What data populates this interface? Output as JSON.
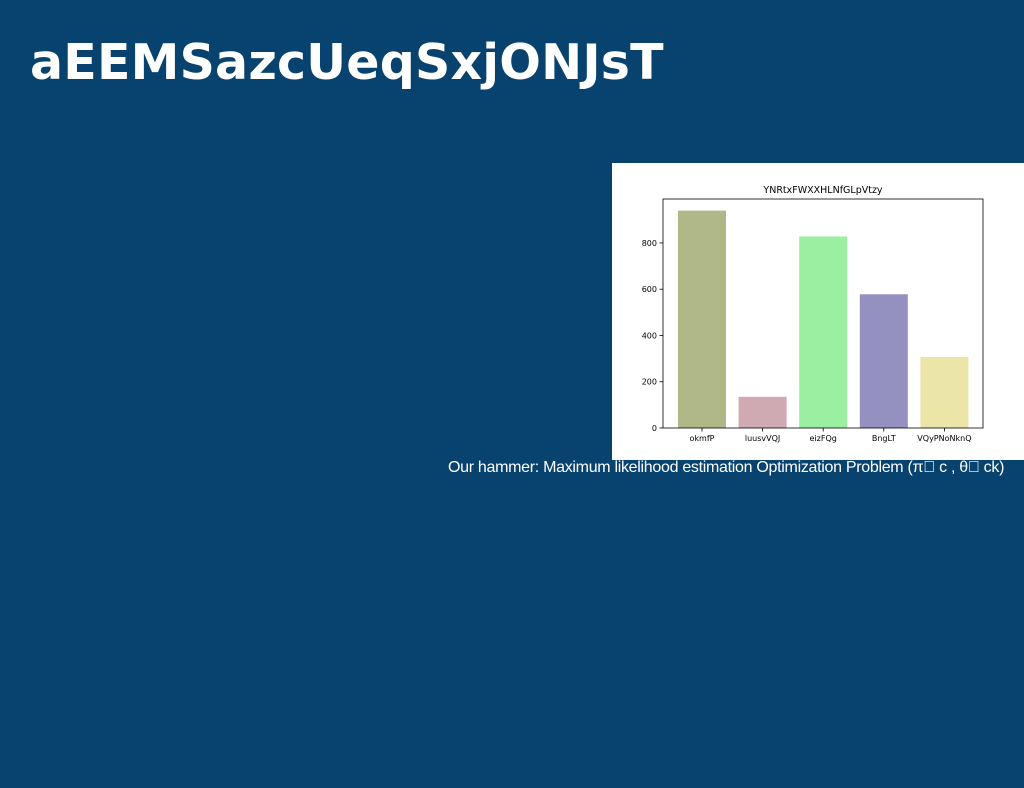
{
  "slide": {
    "title": "aEEMSazcUeqSxjONJsT",
    "caption": "Our hammer: Maximum likelihood estimation Optimization Problem (π\u0000 c , θ\u0000 ck)",
    "background": "#08426e"
  },
  "chart_data": {
    "type": "bar",
    "title": "YNRtxFWXXHLNfGLpVtzy",
    "xlabel": "",
    "ylabel": "",
    "categories": [
      "okmfP",
      "luusvVQJ",
      "eizFQg",
      "BngLT",
      "VQyPNoNknQ"
    ],
    "values": [
      940,
      135,
      828,
      578,
      307
    ],
    "colors": [
      "#b0b888",
      "#d0aab2",
      "#9af0a0",
      "#9490c0",
      "#ebe5a8"
    ],
    "ylim": [
      0,
      990
    ],
    "yticks": [
      0,
      200,
      400,
      600,
      800
    ],
    "grid": false
  }
}
